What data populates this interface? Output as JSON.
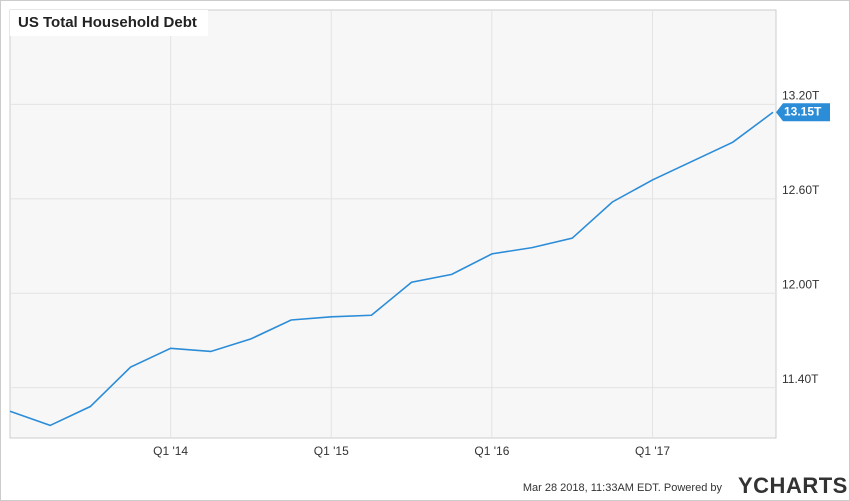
{
  "chart_data": {
    "type": "line",
    "title": "US Total Household Debt",
    "categories": [
      null,
      null,
      null,
      null,
      "Q1 '14",
      null,
      null,
      null,
      "Q1 '15",
      null,
      null,
      null,
      "Q1 '16",
      null,
      null,
      null,
      "Q1 '17",
      null,
      null,
      null
    ],
    "series": [
      {
        "color": "#2b8cd8",
        "values": [
          11.25,
          11.16,
          11.28,
          11.53,
          11.65,
          11.63,
          11.71,
          11.83,
          11.85,
          11.86,
          12.07,
          12.12,
          12.25,
          12.29,
          12.35,
          12.58,
          12.72,
          12.84,
          12.96,
          13.15
        ],
        "value_labels": [
          null,
          null,
          null,
          null,
          null,
          null,
          null,
          null,
          null,
          null,
          null,
          null,
          null,
          null,
          null,
          null,
          null,
          null,
          null,
          "13.15T"
        ]
      }
    ],
    "ylim": [
      11.08,
      13.8
    ],
    "yticks": [
      {
        "value": 11.4,
        "label": "11.40T"
      },
      {
        "value": 12.0,
        "label": "12.00T"
      },
      {
        "value": 12.6,
        "label": "12.60T"
      },
      {
        "value": 13.2,
        "label": "13.20T"
      }
    ],
    "grid": true,
    "footer": {
      "timestamp": "Mar 28 2018, 11:33AM EDT.  Powered by",
      "logo": "YCHARTS"
    }
  }
}
